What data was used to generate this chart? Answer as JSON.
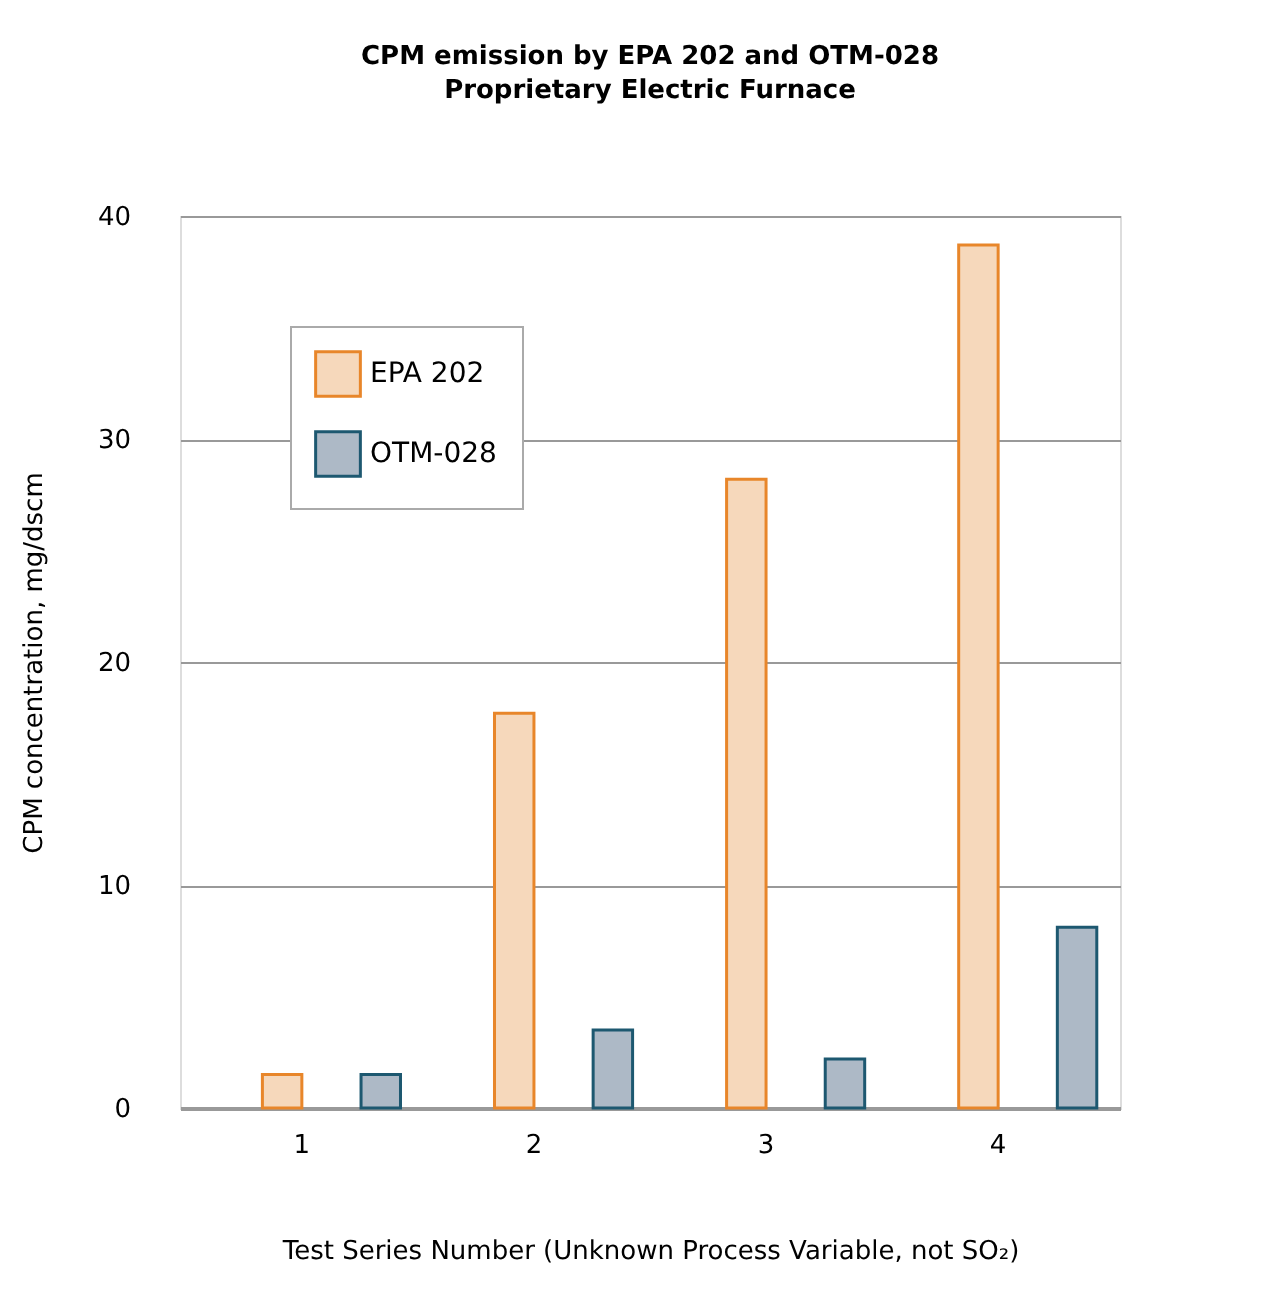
{
  "chart_data": {
    "type": "bar",
    "title": "CPM emission by EPA 202 and OTM-028",
    "subtitle": "Proprietary Electric Furnace",
    "xlabel": "Test Series Number (Unknown Process Variable, not SO₂)",
    "ylabel": "CPM concentration, mg/dscm",
    "categories": [
      "1",
      "2",
      "3",
      "4"
    ],
    "series": [
      {
        "name": "EPA 202",
        "color": "#f6d8bb",
        "values": [
          1.5,
          17.7,
          28.2,
          38.7
        ]
      },
      {
        "name": "OTM-028",
        "color": "#adb9c6",
        "values": [
          1.5,
          3.5,
          2.2,
          8.1
        ]
      }
    ],
    "ylim": [
      0,
      40
    ],
    "yticks": [
      0,
      10,
      20,
      30,
      40
    ],
    "grid": "y",
    "legend": "top left"
  }
}
